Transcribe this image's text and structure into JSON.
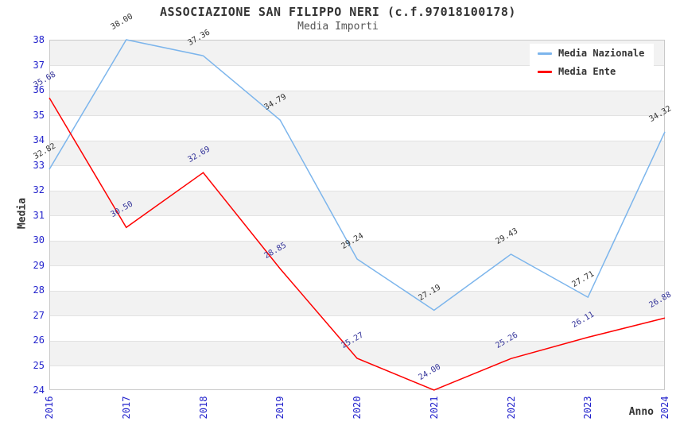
{
  "title": "ASSOCIAZIONE SAN FILIPPO NERI (c.f.97018100178)",
  "subtitle": "Media Importi",
  "chart_data": {
    "type": "line",
    "x_categories": [
      "2016",
      "2017",
      "2018",
      "2019",
      "2020",
      "2021",
      "2022",
      "2023",
      "2024"
    ],
    "series": [
      {
        "name": "Media Nazionale",
        "color": "#7cb5ec",
        "label_color": "#333333",
        "values": [
          32.82,
          38.0,
          37.36,
          34.79,
          29.24,
          27.19,
          29.43,
          27.71,
          34.32
        ]
      },
      {
        "name": "Media Ente",
        "color": "#ff0000",
        "label_color": "#333399",
        "values": [
          35.68,
          30.5,
          32.69,
          28.85,
          25.27,
          24.0,
          25.26,
          26.11,
          26.88
        ]
      }
    ],
    "xlabel": "Anno",
    "ylabel": "Media",
    "ylim": [
      24,
      38
    ],
    "y_tick_step": 1,
    "grid": "alternating horizontal bands, gray topmost",
    "legend_position": "top-right",
    "data_label_rotation_deg": -30,
    "data_label_format": "2 decimals",
    "band_color": "#f2f2f2",
    "gridline_color": "#e2e2e2",
    "axis_label_color": "#2222cc"
  }
}
